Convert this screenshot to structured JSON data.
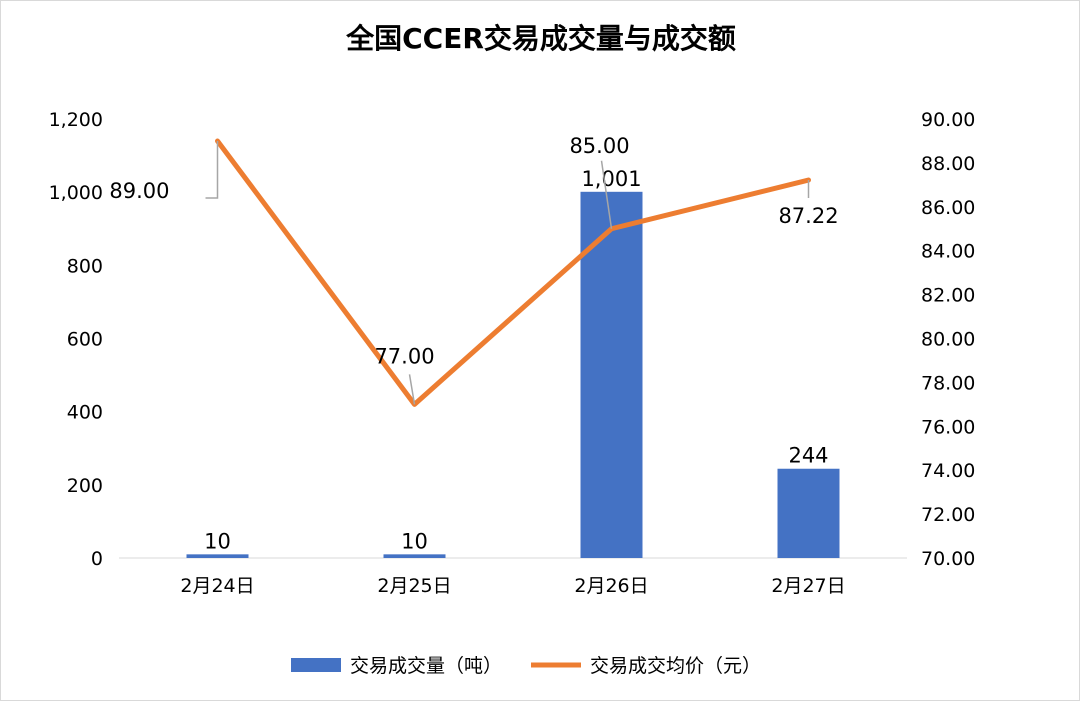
{
  "chart_data": {
    "type": "bar+line",
    "title": "全国CCER交易成交量与成交额",
    "categories": [
      "2月24日",
      "2月25日",
      "2月26日",
      "2月27日"
    ],
    "series": [
      {
        "name": "交易成交量（吨）",
        "type": "bar",
        "axis": "left",
        "values": [
          10,
          10,
          1001,
          244
        ],
        "labels": [
          "10",
          "10",
          "1,001",
          "244"
        ],
        "color": "#4472C4"
      },
      {
        "name": "交易成交均价（元）",
        "type": "line",
        "axis": "right",
        "values": [
          89.0,
          77.0,
          85.0,
          87.22
        ],
        "labels": [
          "89.00",
          "77.00",
          "85.00",
          "87.22"
        ],
        "color": "#ED7D31"
      }
    ],
    "y_left": {
      "min": 0,
      "max": 1200,
      "ticks": [
        "0",
        "200",
        "400",
        "600",
        "800",
        "1,000",
        "1,200"
      ]
    },
    "y_right": {
      "min": 70,
      "max": 90,
      "ticks": [
        "70.00",
        "72.00",
        "74.00",
        "76.00",
        "78.00",
        "80.00",
        "82.00",
        "84.00",
        "86.00",
        "88.00",
        "90.00"
      ]
    },
    "grid": false,
    "legend": "bottom"
  }
}
